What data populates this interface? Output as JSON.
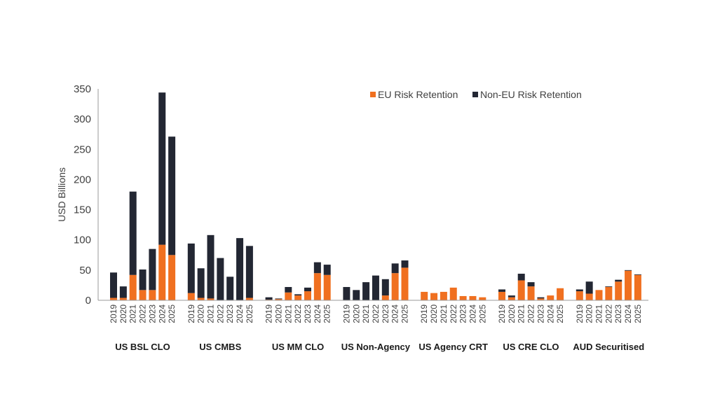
{
  "chart_data": {
    "type": "bar",
    "stacked": true,
    "title": "",
    "ylabel": "USD Billions",
    "xlabel": "",
    "ylim": [
      0,
      350
    ],
    "yticks": [
      0,
      50,
      100,
      150,
      200,
      250,
      300,
      350
    ],
    "grid": false,
    "legend_position": "top-right",
    "years": [
      "2019",
      "2020",
      "2021",
      "2022",
      "2023",
      "2024",
      "2025"
    ],
    "groups": [
      "US BSL CLO",
      "US CMBS",
      "US MM CLO",
      "US Non-Agency",
      "US Agency CRT",
      "US CRE CLO",
      "AUD Securitised"
    ],
    "series": [
      {
        "name": "EU Risk Retention",
        "color": "#f07020",
        "values": [
          [
            4,
            4,
            42,
            17,
            17,
            92,
            75
          ],
          [
            12,
            4,
            3,
            0,
            0,
            0,
            4
          ],
          [
            1,
            2,
            13,
            8,
            15,
            45,
            42
          ],
          [
            0,
            0,
            0,
            0,
            8,
            45,
            54
          ],
          [
            14,
            12,
            14,
            21,
            7,
            7,
            5
          ],
          [
            14,
            5,
            33,
            23,
            3,
            8,
            20
          ],
          [
            15,
            11,
            17,
            22,
            31,
            49,
            42
          ]
        ]
      },
      {
        "name": "Non-EU Risk Retention",
        "color": "#232733",
        "values": [
          [
            42,
            19,
            138,
            34,
            68,
            252,
            196
          ],
          [
            82,
            49,
            105,
            70,
            39,
            103,
            86
          ],
          [
            4,
            1,
            9,
            2,
            6,
            18,
            17
          ],
          [
            22,
            17,
            30,
            41,
            27,
            16,
            12
          ],
          [
            0,
            0,
            0,
            0,
            0,
            0,
            0
          ],
          [
            4,
            3,
            11,
            7,
            2,
            0,
            0
          ],
          [
            3,
            20,
            0,
            1,
            3,
            1,
            1
          ]
        ]
      }
    ]
  }
}
